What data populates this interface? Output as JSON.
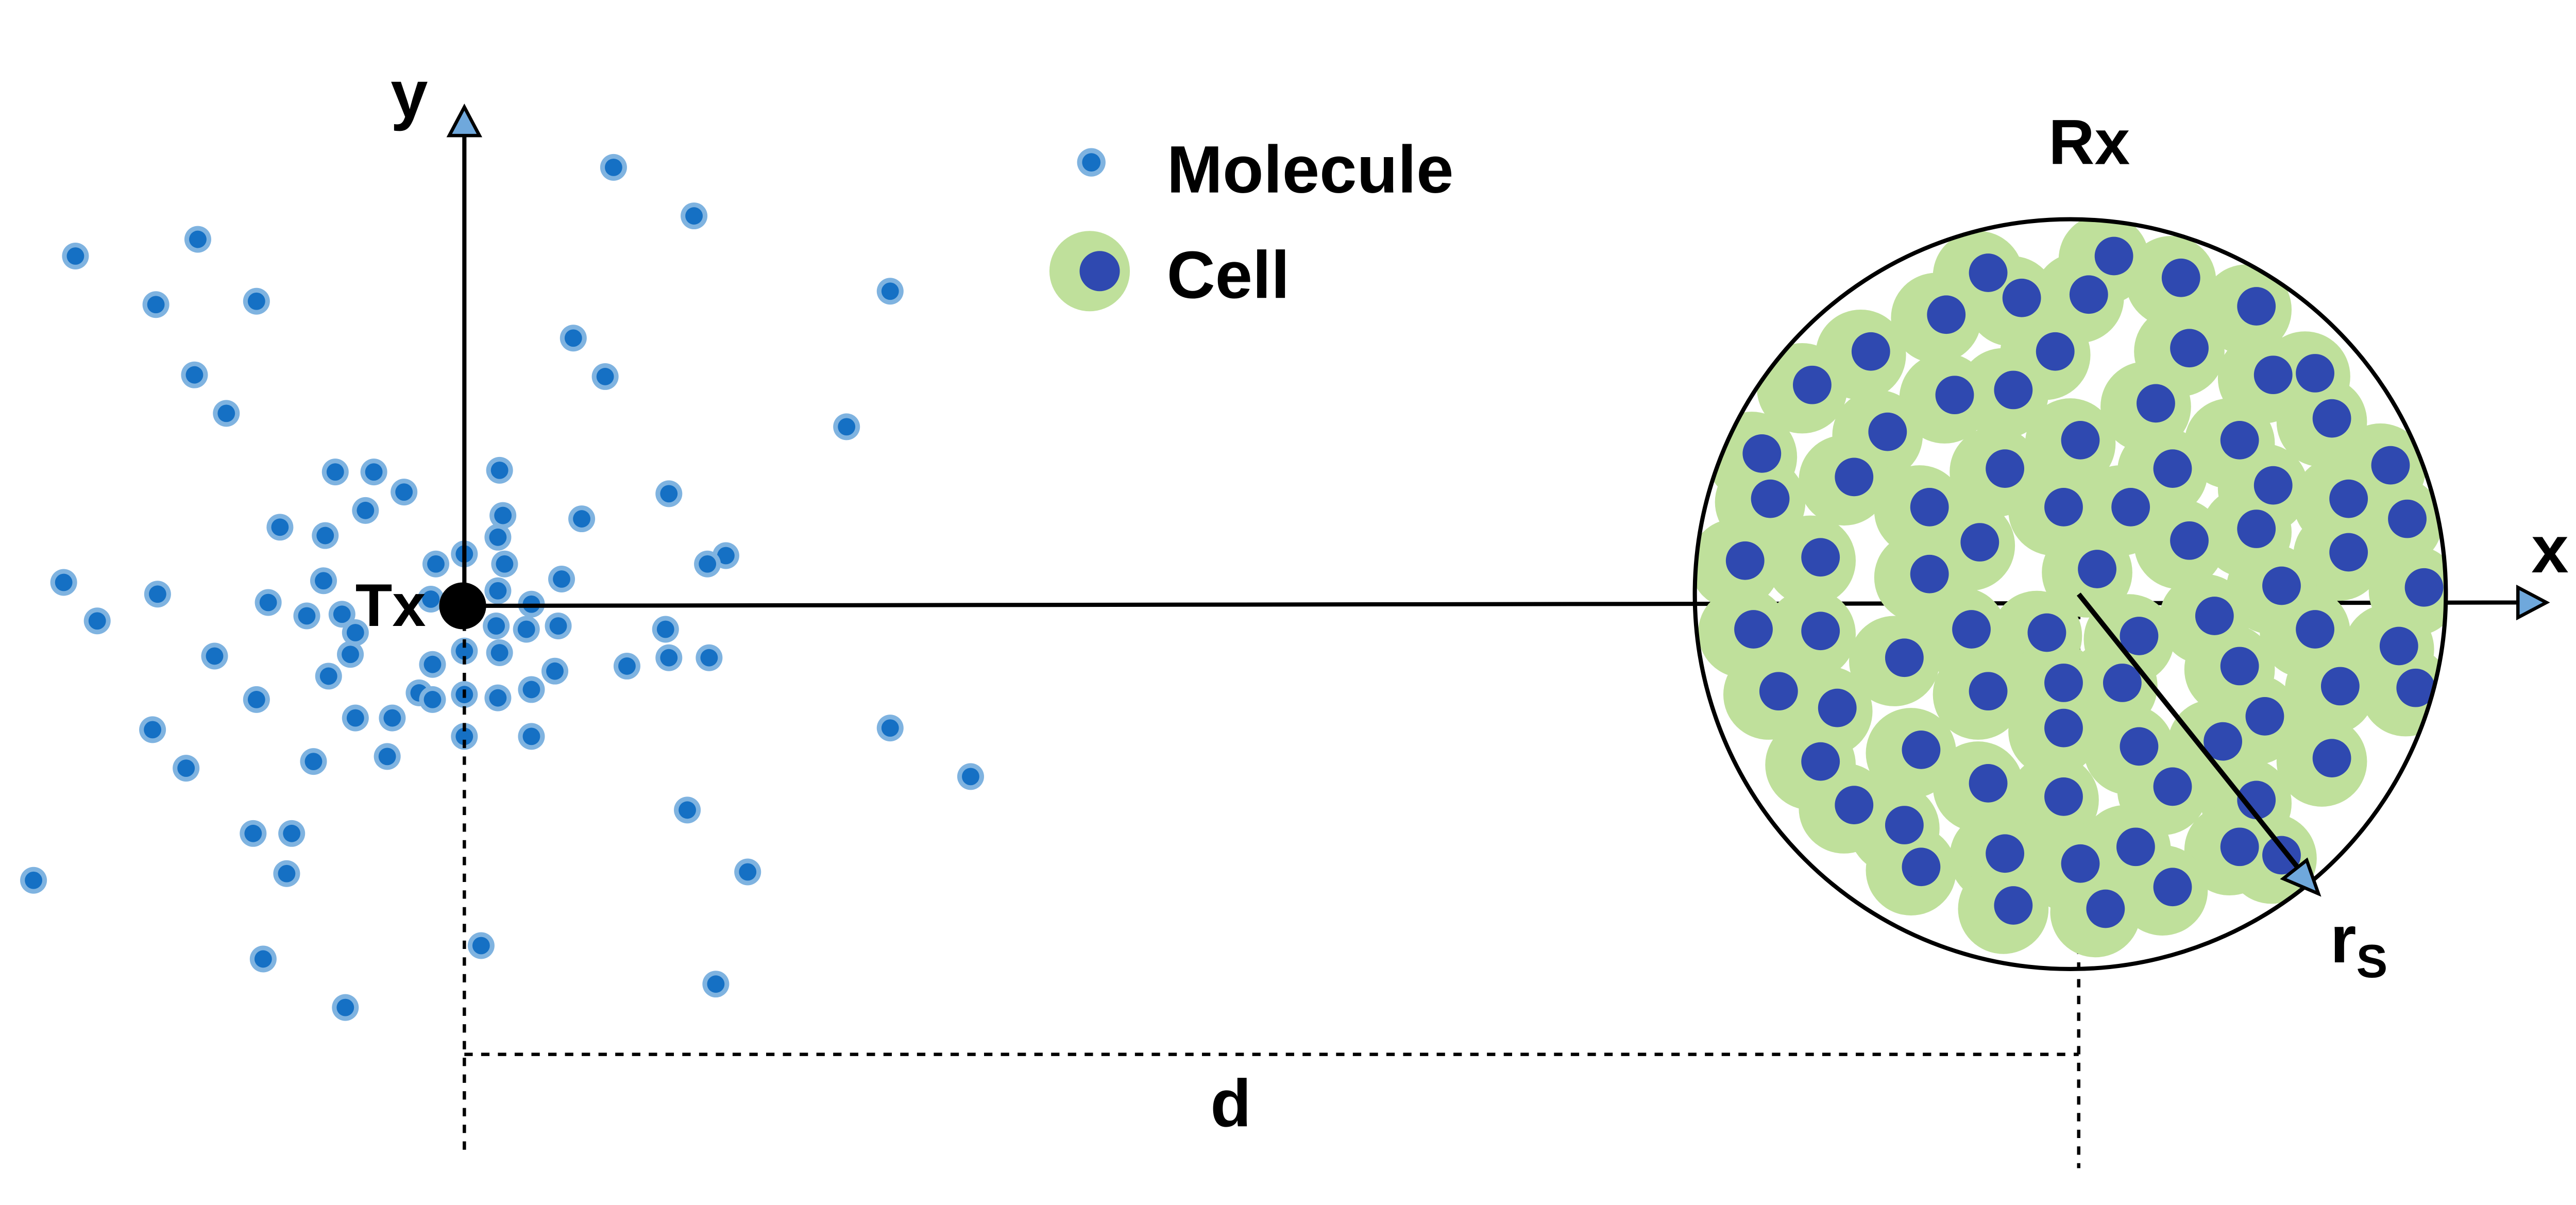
{
  "labels": {
    "y_axis": "y",
    "x_axis": "x",
    "transmitter": "Tx",
    "receiver": "Rx",
    "distance": "d",
    "radius_main": "r",
    "radius_sub": "S"
  },
  "legend": {
    "molecule": "Molecule",
    "cell": "Cell"
  },
  "colors": {
    "molecule_fill": "#1570c4",
    "molecule_ring": "#7fb3e0",
    "cell_outer": "#bfe09b",
    "cell_nucleus": "#2f49b0",
    "line": "#000000",
    "arrowhead": "#6fa8dc"
  }
}
